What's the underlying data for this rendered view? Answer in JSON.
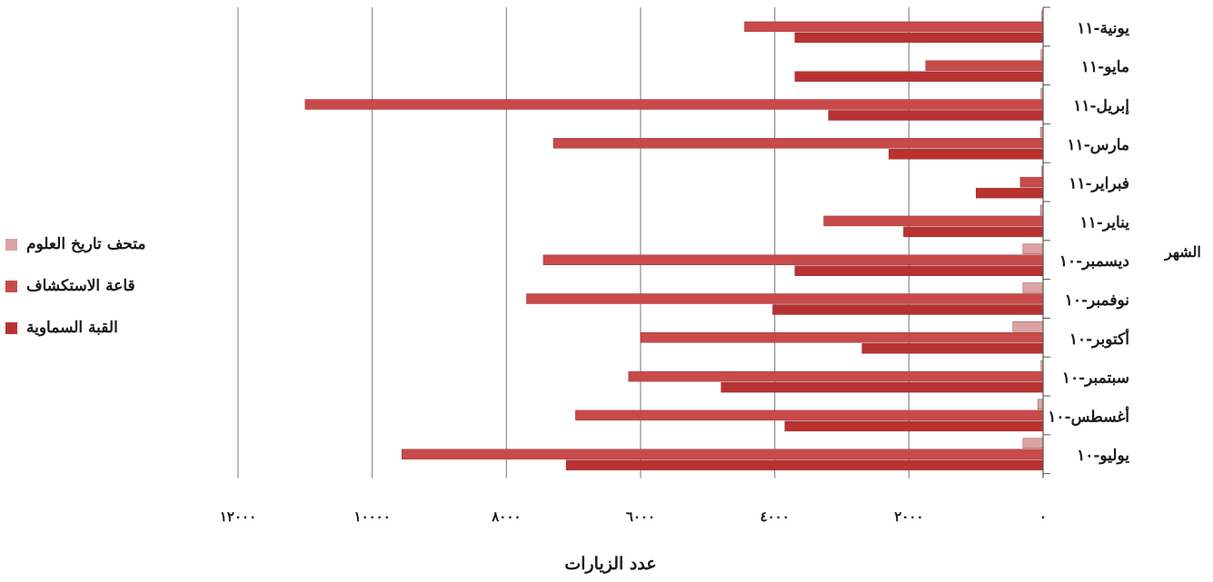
{
  "chart_data": {
    "type": "bar",
    "orientation": "horizontal",
    "categories": [
      "يونية-١١",
      "مايو-١١",
      "إبريل-١١",
      "مارس-١١",
      "فبراير-١١",
      "يناير-١١",
      "ديسمبر-١٠",
      "نوفمبر-١٠",
      "أكتوبر-١٠",
      "سبتمبر-١٠",
      "أغسطس-١٠",
      "يوليو-١٠"
    ],
    "series": [
      {
        "name": "متحف تاريخ العلوم",
        "color": "#dba3a3",
        "values": [
          20,
          30,
          30,
          40,
          20,
          40,
          300,
          300,
          450,
          30,
          80,
          300
        ]
      },
      {
        "name": "قاعة الاستكشاف",
        "color": "#c94a4a",
        "values": [
          4450,
          1750,
          11000,
          7300,
          340,
          3270,
          7450,
          7700,
          6000,
          6180,
          6970,
          9560
        ]
      },
      {
        "name": "القبة السماوية",
        "color": "#b83232",
        "values": [
          3700,
          3700,
          3200,
          2300,
          1000,
          2080,
          3700,
          4030,
          2700,
          4800,
          3850,
          7110
        ]
      }
    ],
    "xlim": [
      0,
      12000
    ],
    "x_ticks": [
      0,
      2000,
      4000,
      6000,
      8000,
      10000,
      12000
    ],
    "x_tick_labels": [
      "٠",
      "٢٠٠٠",
      "٤٠٠٠",
      "٦٠٠٠",
      "٨٠٠٠",
      "١٠٠٠٠",
      "١٢٠٠٠"
    ],
    "xlabel": "عدد الزيارات",
    "ylabel": "الشهر",
    "grid": true,
    "legend_position": "left",
    "axis_side": "right"
  }
}
